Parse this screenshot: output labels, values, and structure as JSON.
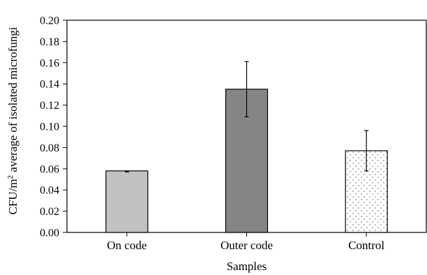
{
  "chart_data": {
    "type": "bar",
    "title": "",
    "xlabel": "Samples",
    "ylabel": "CFU/m² average of isolated microfungi",
    "ylabel_parts": {
      "pre": "CFU/m",
      "sup": "2",
      "post": " average of isolated microfungi"
    },
    "categories": [
      "On code",
      "Outer code",
      "Control"
    ],
    "values": [
      0.058,
      0.135,
      0.077
    ],
    "error_bars": [
      {
        "low": 0.057,
        "high": 0.058
      },
      {
        "low": 0.109,
        "high": 0.161
      },
      {
        "low": 0.058,
        "high": 0.096
      }
    ],
    "ylim": [
      0,
      0.2
    ],
    "yticks": [
      0.0,
      0.02,
      0.04,
      0.06,
      0.08,
      0.1,
      0.12,
      0.14,
      0.16,
      0.18,
      0.2
    ],
    "ytick_labels": [
      "0.00",
      "0.02",
      "0.04",
      "0.06",
      "0.08",
      "0.10",
      "0.12",
      "0.14",
      "0.16",
      "0.18",
      "0.20"
    ],
    "bar_colors": [
      "#c2c2c2",
      "#858585",
      "#ffffff"
    ],
    "bar_patterns": [
      "solid",
      "solid",
      "dots"
    ],
    "grid": false,
    "legend": "none"
  }
}
